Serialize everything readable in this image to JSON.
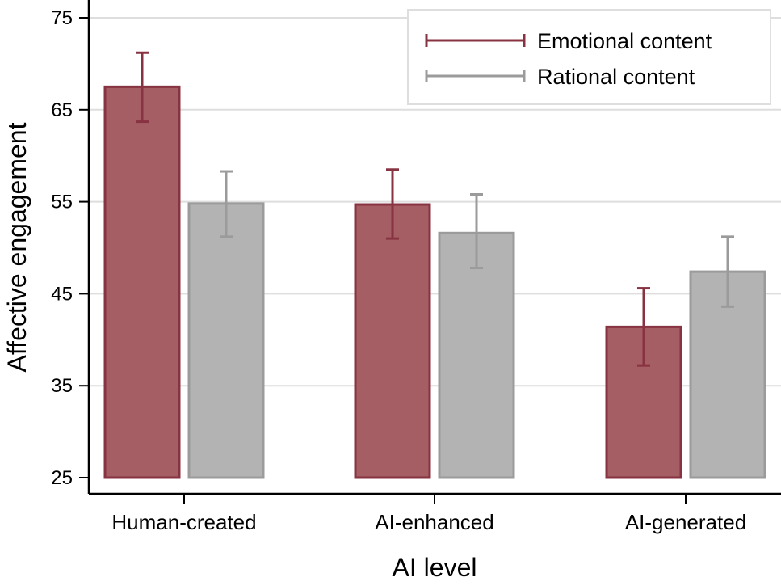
{
  "chart_data": {
    "type": "bar",
    "title": "",
    "xlabel": "AI level",
    "ylabel": "Affective engagement",
    "ylim": [
      25,
      75
    ],
    "yticks": [
      25,
      35,
      45,
      55,
      65,
      75
    ],
    "grid": true,
    "legend_position": "top-right",
    "categories": [
      "Human-created",
      "AI-enhanced",
      "AI-generated"
    ],
    "series": [
      {
        "name": "Emotional content",
        "values": [
          67.5,
          54.7,
          41.4
        ],
        "error_low": [
          63.7,
          51.0,
          37.2
        ],
        "error_high": [
          71.2,
          58.5,
          45.6
        ],
        "fill": "#a55e64",
        "stroke": "#883341"
      },
      {
        "name": "Rational content",
        "values": [
          54.8,
          51.6,
          47.4
        ],
        "error_low": [
          51.2,
          47.8,
          43.6
        ],
        "error_high": [
          58.3,
          55.8,
          51.2
        ],
        "fill": "#b3b3b3",
        "stroke": "#9b9b9b"
      }
    ]
  }
}
